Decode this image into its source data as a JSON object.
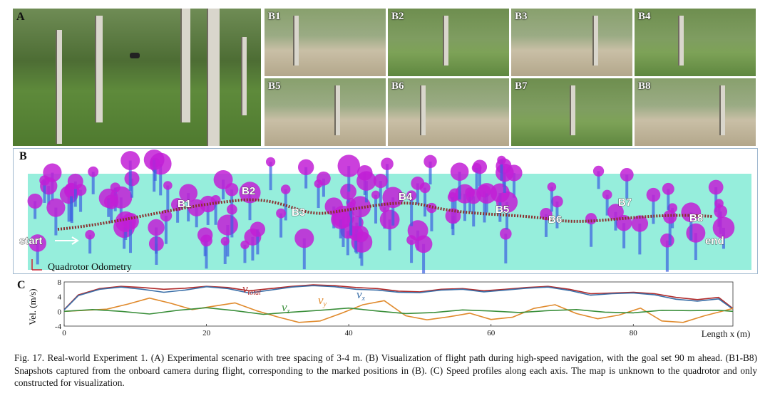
{
  "panels": {
    "a_label": "A",
    "b_label": "B",
    "c_label": "C",
    "snapshots": [
      "B1",
      "B2",
      "B3",
      "B4",
      "B5",
      "B6",
      "B7",
      "B8"
    ]
  },
  "map": {
    "start_label": "start",
    "end_label": "end",
    "markers": [
      "B1",
      "B2",
      "B3",
      "B4",
      "B5",
      "B6",
      "B7",
      "B8"
    ],
    "odometry_label": "Quadrotor Odometry"
  },
  "chart_data": {
    "type": "line",
    "xlabel": "Length x (m)",
    "ylabel": "Vel. (m/s)",
    "xlim": [
      0,
      94
    ],
    "ylim": [
      -4,
      8
    ],
    "xticks": [
      0,
      20,
      40,
      60,
      80
    ],
    "yticks": [
      -4,
      0,
      4,
      8
    ],
    "grid": false,
    "series": [
      {
        "name": "v_total",
        "color": "#b02a2a",
        "x": [
          0,
          2,
          5,
          8,
          11,
          14,
          17,
          20,
          23,
          26,
          29,
          32,
          35,
          38,
          41,
          44,
          47,
          50,
          53,
          56,
          59,
          62,
          65,
          68,
          71,
          74,
          77,
          80,
          83,
          86,
          89,
          92,
          94
        ],
        "y": [
          0.5,
          4.5,
          6.2,
          6.8,
          6.5,
          6.0,
          6.3,
          6.8,
          6.5,
          5.6,
          6.2,
          6.8,
          7.2,
          7.0,
          6.5,
          6.2,
          5.5,
          5.3,
          6.0,
          6.2,
          5.6,
          6.0,
          6.5,
          6.8,
          6.0,
          4.8,
          5.0,
          5.2,
          4.8,
          3.8,
          3.2,
          3.8,
          0.8
        ]
      },
      {
        "name": "v_x",
        "color": "#3a6fa8",
        "x": [
          0,
          2,
          5,
          8,
          11,
          14,
          17,
          20,
          23,
          26,
          29,
          32,
          35,
          38,
          41,
          44,
          47,
          50,
          53,
          56,
          59,
          62,
          65,
          68,
          71,
          74,
          77,
          80,
          83,
          86,
          89,
          92,
          94
        ],
        "y": [
          0.4,
          4.3,
          6.0,
          6.6,
          6.0,
          5.2,
          5.8,
          6.7,
          6.2,
          5.0,
          5.8,
          6.6,
          7.0,
          6.7,
          6.0,
          5.8,
          5.2,
          5.1,
          5.8,
          6.0,
          5.3,
          5.8,
          6.3,
          6.6,
          5.7,
          4.4,
          4.8,
          5.0,
          4.5,
          3.3,
          2.8,
          3.4,
          0.6
        ]
      },
      {
        "name": "v_y",
        "color": "#e08a2c",
        "x": [
          0,
          3,
          6,
          9,
          12,
          15,
          18,
          21,
          24,
          27,
          30,
          33,
          36,
          39,
          42,
          45,
          48,
          51,
          54,
          57,
          60,
          63,
          66,
          69,
          72,
          75,
          78,
          81,
          84,
          87,
          90,
          94
        ],
        "y": [
          0.0,
          0.3,
          0.6,
          2.0,
          3.6,
          2.2,
          0.5,
          1.4,
          2.3,
          0.2,
          -1.5,
          -3.0,
          -2.6,
          -0.5,
          1.8,
          2.9,
          -1.2,
          -2.3,
          -1.5,
          -0.5,
          -2.2,
          -1.6,
          0.8,
          1.8,
          -0.6,
          -2.0,
          -1.0,
          0.9,
          -2.6,
          -3.0,
          -1.2,
          0.8
        ]
      },
      {
        "name": "v_z",
        "color": "#3b8f3b",
        "x": [
          0,
          4,
          8,
          12,
          16,
          20,
          24,
          28,
          32,
          36,
          40,
          44,
          48,
          52,
          56,
          60,
          64,
          68,
          72,
          76,
          80,
          84,
          88,
          92,
          94
        ],
        "y": [
          0.0,
          0.5,
          0.0,
          -0.7,
          0.3,
          1.0,
          0.2,
          -0.8,
          -0.2,
          0.3,
          0.9,
          0.1,
          -0.6,
          -0.3,
          0.4,
          0.1,
          -0.3,
          0.2,
          0.5,
          -0.2,
          -0.4,
          0.3,
          0.2,
          0.3,
          0.0
        ]
      }
    ]
  },
  "legend_text": {
    "v_total_main": "v",
    "v_total_sub": "total",
    "v_y_main": "v",
    "v_y_sub": "y",
    "v_x_main": "v",
    "v_x_sub": "x",
    "v_z_main": "v",
    "v_z_sub": "z"
  },
  "caption": {
    "text": "Fig. 17. Real-world Experiment 1. (A) Experimental scenario with tree spacing of 3-4 m. (B) Visualization of flight path during high-speed navigation, with the goal set 90 m ahead. (B1-B8) Snapshots captured from the onboard camera during flight, corresponding to the marked positions in (B). (C) Speed profiles along each axis. The map is unknown to the quadrotor and only constructed for visualization."
  },
  "colors": {
    "background": "#ffffff",
    "pointcloud_ground": "#3fe0c0",
    "pointcloud_trees": "#c21fd6",
    "path": "#8a3030"
  }
}
